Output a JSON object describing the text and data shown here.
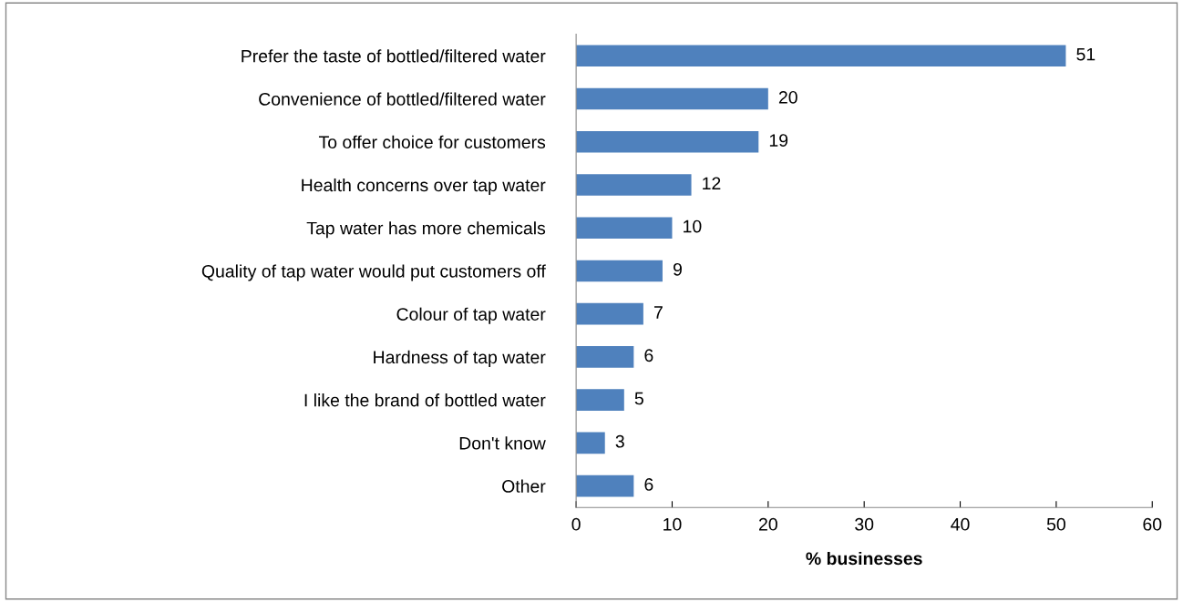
{
  "chart_data": {
    "type": "bar",
    "orientation": "horizontal",
    "xlabel": "% businesses",
    "categories": [
      "Prefer the taste of bottled/filtered water",
      "Convenience of bottled/filtered water",
      "To offer choice for customers",
      "Health concerns over tap water",
      "Tap water has more chemicals",
      "Quality of tap water would put customers off",
      "Colour of tap water",
      "Hardness of tap water",
      "I like the brand of bottled water",
      "Don't know",
      "Other"
    ],
    "values": [
      51,
      20,
      19,
      12,
      10,
      9,
      7,
      6,
      5,
      3,
      6
    ],
    "color": "#4f81bd",
    "xlim": [
      0,
      60
    ],
    "xticks": [
      0,
      10,
      20,
      30,
      40,
      50,
      60
    ],
    "grid": false,
    "data_labels": true,
    "legend": false
  }
}
